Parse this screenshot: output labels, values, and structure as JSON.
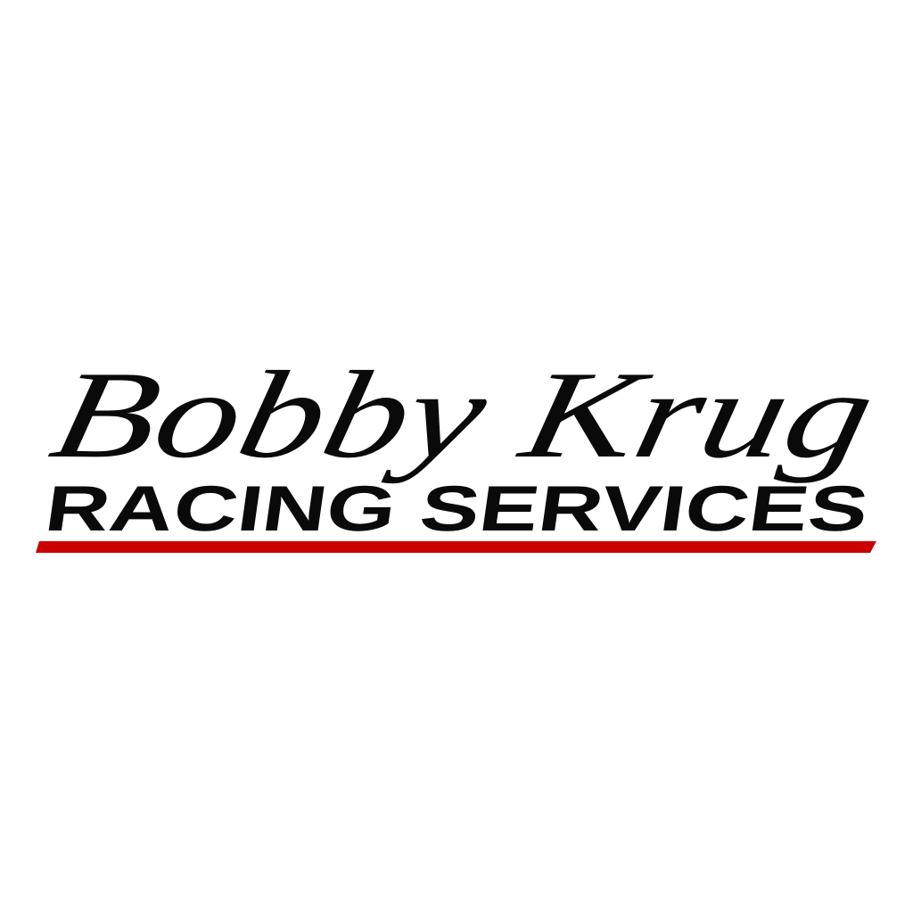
{
  "logo": {
    "signature": "Bobby Krug",
    "tagline": "RACING SERVICES",
    "colors": {
      "ink": "#0a0a0a",
      "underline": "#cc0000",
      "background": "#ffffff"
    }
  }
}
